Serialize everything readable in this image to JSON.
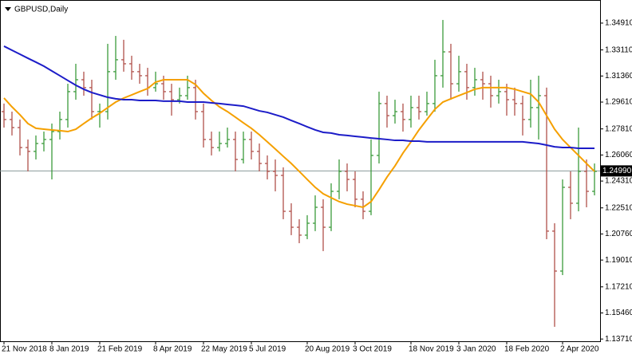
{
  "chart_data": {
    "type": "ohlc",
    "title": "GBPUSD,Daily",
    "categories": [
      "21 Nov 2018",
      null,
      null,
      null,
      null,
      null,
      "8 Jan 2019",
      null,
      null,
      null,
      null,
      null,
      "21 Feb 2019",
      null,
      null,
      null,
      null,
      null,
      null,
      "8 Apr 2019",
      null,
      null,
      null,
      null,
      null,
      "22 May 2019",
      null,
      null,
      null,
      null,
      null,
      "5 Jul 2019",
      null,
      null,
      null,
      null,
      null,
      null,
      "20 Aug 2019",
      null,
      null,
      null,
      null,
      null,
      "3 Oct 2019",
      null,
      null,
      null,
      null,
      null,
      null,
      "18 Nov 2019",
      null,
      null,
      null,
      null,
      null,
      "3 Jan 2020",
      null,
      null,
      null,
      null,
      null,
      "18 Feb 2020",
      null,
      null,
      null,
      null,
      null,
      null,
      "2 Apr 2020",
      null,
      null,
      null,
      null
    ],
    "open": [
      1.2897,
      1.2844,
      1.279,
      1.2656,
      1.263,
      1.2683,
      1.271,
      1.2763,
      1.2844,
      1.3031,
      1.3111,
      1.3058,
      1.2897,
      1.2897,
      1.3165,
      1.3245,
      1.3218,
      1.3165,
      1.3138,
      1.3058,
      1.3084,
      1.3031,
      1.2977,
      1.3004,
      1.3058,
      1.2897,
      1.271,
      1.2656,
      1.2683,
      1.271,
      1.2576,
      1.271,
      1.263,
      1.2549,
      1.2496,
      1.2469,
      1.2228,
      1.2121,
      1.2068,
      1.2148,
      1.2255,
      1.2121,
      1.2362,
      1.2496,
      1.2442,
      1.2309,
      1.2228,
      1.2603,
      1.2951,
      1.287,
      1.2897,
      1.2844,
      1.2924,
      1.2897,
      1.2951,
      1.3138,
      1.3298,
      1.3084,
      1.3165,
      1.3058,
      1.3111,
      1.3084,
      1.3004,
      1.3031,
      1.2977,
      1.2951,
      1.2844,
      1.2924,
      1.3004,
      1.2095,
      1.1827,
      1.2389,
      1.2282,
      1.2496,
      1.2362
    ],
    "high": [
      1.2951,
      1.2897,
      1.2844,
      1.271,
      1.2737,
      1.2763,
      1.2817,
      1.2897,
      1.3084,
      1.3218,
      1.3165,
      1.3111,
      1.2951,
      1.3352,
      1.3405,
      1.3379,
      1.3272,
      1.3218,
      1.3191,
      1.3165,
      1.3138,
      1.3084,
      1.3058,
      1.3138,
      1.3111,
      1.2951,
      1.2763,
      1.2763,
      1.279,
      1.2763,
      1.2763,
      1.2763,
      1.2683,
      1.2603,
      1.2576,
      1.2523,
      1.2282,
      1.2175,
      1.2202,
      1.2335,
      1.2309,
      1.2416,
      1.2576,
      1.2549,
      1.2496,
      1.2362,
      1.271,
      1.3031,
      1.3004,
      1.2977,
      1.2951,
      1.3004,
      1.3004,
      1.3031,
      1.3245,
      1.3512,
      1.3352,
      1.3272,
      1.3218,
      1.3191,
      1.3165,
      1.3138,
      1.3111,
      1.3084,
      1.3058,
      1.3004,
      1.3111,
      1.3138,
      1.3058,
      1.2148,
      1.2442,
      1.2496,
      1.279,
      1.2576,
      1.2549
    ],
    "low": [
      1.279,
      1.2737,
      1.2603,
      1.2496,
      1.2576,
      1.263,
      1.2442,
      1.271,
      1.279,
      1.2977,
      1.3004,
      1.2844,
      1.279,
      1.2844,
      1.3111,
      1.3165,
      1.3111,
      1.3084,
      1.3004,
      1.3031,
      1.2977,
      1.287,
      1.2951,
      1.2977,
      1.2844,
      1.2656,
      1.2603,
      1.263,
      1.2656,
      1.2496,
      1.2549,
      1.2576,
      1.2496,
      1.2442,
      1.2362,
      1.2175,
      1.2068,
      1.2014,
      1.2041,
      1.2095,
      1.1961,
      1.2095,
      1.2309,
      1.2362,
      1.2255,
      1.2175,
      1.2202,
      1.2549,
      1.279,
      1.2817,
      1.2763,
      1.279,
      1.2844,
      1.287,
      1.2897,
      1.3058,
      1.2977,
      1.3031,
      1.2977,
      1.3004,
      1.2977,
      1.2924,
      1.2951,
      1.287,
      1.287,
      1.2737,
      1.279,
      1.271,
      1.2041,
      1.1453,
      1.18,
      1.2175,
      1.2228,
      1.2255,
      1.2335
    ],
    "close": [
      1.2844,
      1.279,
      1.2656,
      1.263,
      1.2683,
      1.271,
      1.2763,
      1.2844,
      1.3031,
      1.3111,
      1.3058,
      1.2897,
      1.2897,
      1.3165,
      1.3245,
      1.3218,
      1.3165,
      1.3138,
      1.3058,
      1.3084,
      1.3031,
      1.2977,
      1.3004,
      1.3058,
      1.2897,
      1.271,
      1.2656,
      1.2683,
      1.271,
      1.2576,
      1.271,
      1.263,
      1.2549,
      1.2496,
      1.2469,
      1.2228,
      1.2121,
      1.2068,
      1.2148,
      1.2255,
      1.2121,
      1.2362,
      1.2496,
      1.2442,
      1.2309,
      1.2228,
      1.2603,
      1.2951,
      1.287,
      1.2897,
      1.2844,
      1.2924,
      1.2897,
      1.2951,
      1.3138,
      1.3298,
      1.3084,
      1.3165,
      1.3058,
      1.3111,
      1.3084,
      1.3004,
      1.3031,
      1.2977,
      1.2951,
      1.2844,
      1.2924,
      1.3004,
      1.2095,
      1.1827,
      1.2389,
      1.2282,
      1.2496,
      1.2362,
      1.2496
    ],
    "up_color": "#3c9a3c",
    "down_color": "#b0504a",
    "lines": [
      {
        "color": "#f5a000",
        "values": [
          1.2988,
          1.2929,
          1.2876,
          1.2817,
          1.2785,
          1.2779,
          1.2774,
          1.2769,
          1.2763,
          1.2779,
          1.2817,
          1.2854,
          1.2886,
          1.2924,
          1.2961,
          1.2988,
          1.3009,
          1.3031,
          1.3052,
          1.3095,
          1.3111,
          1.3111,
          1.3111,
          1.3111,
          1.3079,
          1.302,
          1.2972,
          1.2929,
          1.2897,
          1.286,
          1.2822,
          1.2785,
          1.2742,
          1.2694,
          1.2646,
          1.2597,
          1.2549,
          1.2496,
          1.2442,
          1.2389,
          1.2346,
          1.2319,
          1.2293,
          1.2276,
          1.2266,
          1.2255,
          1.2293,
          1.2373,
          1.2458,
          1.2533,
          1.2619,
          1.2694,
          1.2774,
          1.2844,
          1.2913,
          1.2961,
          1.2983,
          1.3004,
          1.3025,
          1.3047,
          1.3058,
          1.3058,
          1.3058,
          1.3058,
          1.3047,
          1.3031,
          1.3015,
          1.2961,
          1.287,
          1.2779,
          1.271,
          1.2656,
          1.2603,
          1.2549,
          1.2496
        ]
      },
      {
        "color": "#1c1cc8",
        "values": [
          1.3336,
          1.3309,
          1.3282,
          1.3255,
          1.3229,
          1.3202,
          1.317,
          1.3138,
          1.3106,
          1.3074,
          1.3047,
          1.3025,
          1.3009,
          1.2993,
          1.2983,
          1.2977,
          1.2977,
          1.2972,
          1.2972,
          1.2972,
          1.2967,
          1.2967,
          1.2967,
          1.2961,
          1.2961,
          1.2961,
          1.2956,
          1.2951,
          1.2945,
          1.294,
          1.2934,
          1.2918,
          1.2902,
          1.2892,
          1.2876,
          1.286,
          1.2838,
          1.2817,
          1.2795,
          1.2774,
          1.2758,
          1.2753,
          1.2742,
          1.2737,
          1.2731,
          1.2726,
          1.272,
          1.2715,
          1.271,
          1.2704,
          1.2704,
          1.2699,
          1.2699,
          1.2694,
          1.2694,
          1.2694,
          1.2694,
          1.2694,
          1.2694,
          1.2694,
          1.2694,
          1.2694,
          1.2694,
          1.2694,
          1.2694,
          1.2694,
          1.2688,
          1.2683,
          1.2672,
          1.2661,
          1.2656,
          1.2656,
          1.2651,
          1.2651,
          1.2651
        ]
      }
    ],
    "ylim": [
      1.1356,
      1.3646
    ],
    "yticks": [
      {
        "value": 1.3491,
        "label": "1.34910"
      },
      {
        "value": 1.3311,
        "label": "1.33110"
      },
      {
        "value": 1.3136,
        "label": "1.31360"
      },
      {
        "value": 1.2961,
        "label": "1.29610"
      },
      {
        "value": 1.2781,
        "label": "1.27810"
      },
      {
        "value": 1.2606,
        "label": "1.26060"
      },
      {
        "value": 1.2431,
        "label": "1.24310"
      },
      {
        "value": 1.2251,
        "label": "1.22510"
      },
      {
        "value": 1.2076,
        "label": "1.20760"
      },
      {
        "value": 1.1901,
        "label": "1.19010"
      },
      {
        "value": 1.1721,
        "label": "1.17210"
      },
      {
        "value": 1.1546,
        "label": "1.15460"
      },
      {
        "value": 1.1371,
        "label": "1.13710"
      }
    ],
    "current_price": {
      "value": 1.2499,
      "label": "1.24990"
    },
    "current_price_color": "#8a9a9a"
  }
}
